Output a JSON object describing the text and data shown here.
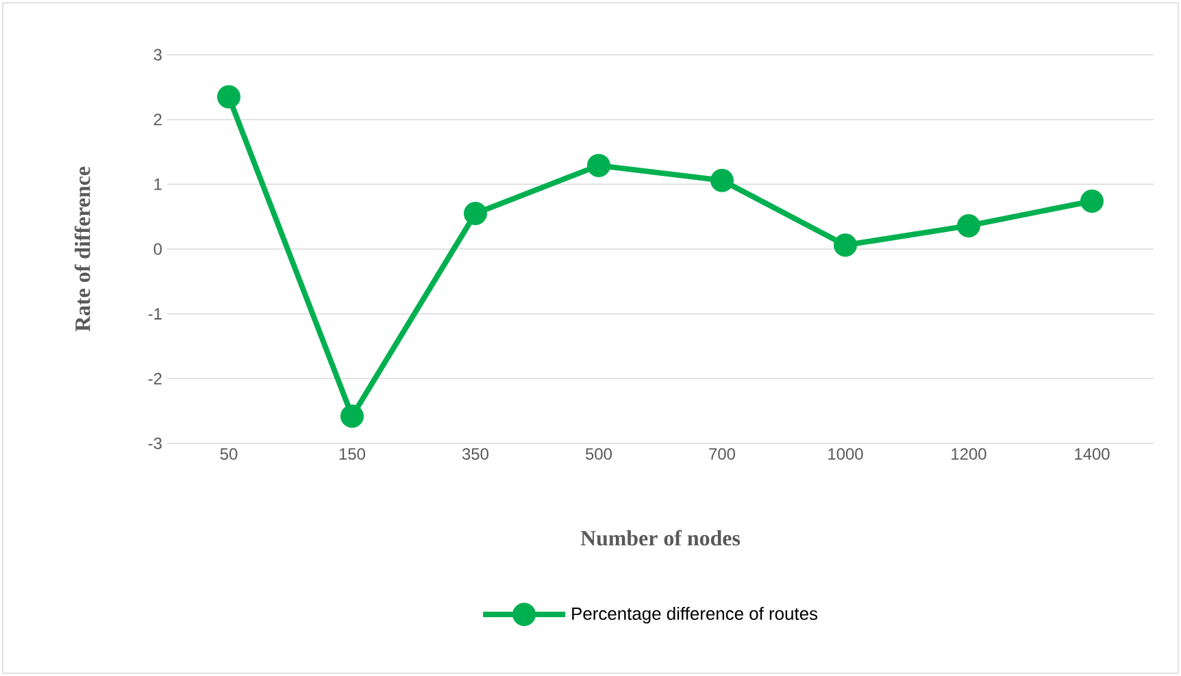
{
  "chart_data": {
    "type": "line",
    "xlabel": "Number of nodes",
    "ylabel": "Rate of difference",
    "categories": [
      "50",
      "150",
      "350",
      "500",
      "700",
      "1000",
      "1200",
      "1400"
    ],
    "series": [
      {
        "name": "Percentage difference of routes",
        "color": "#00b050",
        "values": [
          2.35,
          -2.58,
          0.55,
          1.29,
          1.06,
          0.06,
          0.36,
          0.74
        ]
      }
    ],
    "ylim": [
      -3,
      3
    ],
    "yticks": [
      -3,
      -2,
      -1,
      0,
      1,
      2,
      3
    ],
    "grid": "y",
    "legend": "bottom",
    "marker": "circle",
    "line_style": "solid"
  }
}
